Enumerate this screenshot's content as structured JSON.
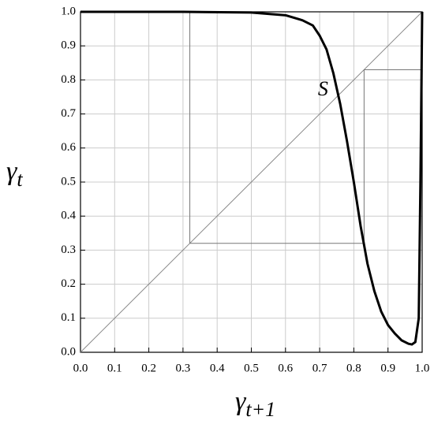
{
  "chart_data": {
    "type": "line",
    "xlabel": {
      "symbol": "γ",
      "subscript": "t+1"
    },
    "ylabel": {
      "symbol": "γ",
      "subscript": "t"
    },
    "xlim": [
      0,
      1
    ],
    "ylim": [
      0,
      1
    ],
    "xticks": [
      {
        "value": 0,
        "label": "0.0"
      },
      0.1,
      0.2,
      0.3,
      0.4,
      0.5,
      0.6,
      0.7,
      0.8,
      0.9,
      {
        "value": 1,
        "label": "1.0"
      }
    ],
    "yticks": [
      {
        "value": 0,
        "label": "0.0"
      },
      0.1,
      0.2,
      0.3,
      0.4,
      0.5,
      0.6,
      0.7,
      0.8,
      0.9,
      {
        "value": 1,
        "label": "1.0"
      }
    ],
    "grid": true,
    "series": [
      {
        "color": "#888888",
        "width": 1,
        "x": [
          0,
          1
        ],
        "values": [
          0,
          1
        ]
      },
      {
        "color": "#777777",
        "width": 1,
        "x": [
          0.32,
          0.32,
          0.83,
          0.83,
          1.0
        ],
        "values": [
          1.0,
          0.32,
          0.32,
          0.83,
          0.83
        ]
      },
      {
        "color": "#000000",
        "width": 3,
        "x": [
          0,
          0.3,
          0.5,
          0.6,
          0.65,
          0.68,
          0.7,
          0.72,
          0.74,
          0.76,
          0.78,
          0.8,
          0.82,
          0.84,
          0.86,
          0.88,
          0.9,
          0.92,
          0.94,
          0.96,
          0.97,
          0.98,
          0.99,
          0.995,
          1.0
        ],
        "values": [
          1,
          1,
          0.998,
          0.99,
          0.975,
          0.96,
          0.93,
          0.89,
          0.82,
          0.73,
          0.62,
          0.5,
          0.37,
          0.26,
          0.18,
          0.12,
          0.08,
          0.055,
          0.035,
          0.025,
          0.023,
          0.03,
          0.1,
          0.5,
          1.0
        ]
      }
    ],
    "annotations": [
      {
        "text": "S",
        "x": 0.695,
        "y": 0.755
      }
    ]
  }
}
